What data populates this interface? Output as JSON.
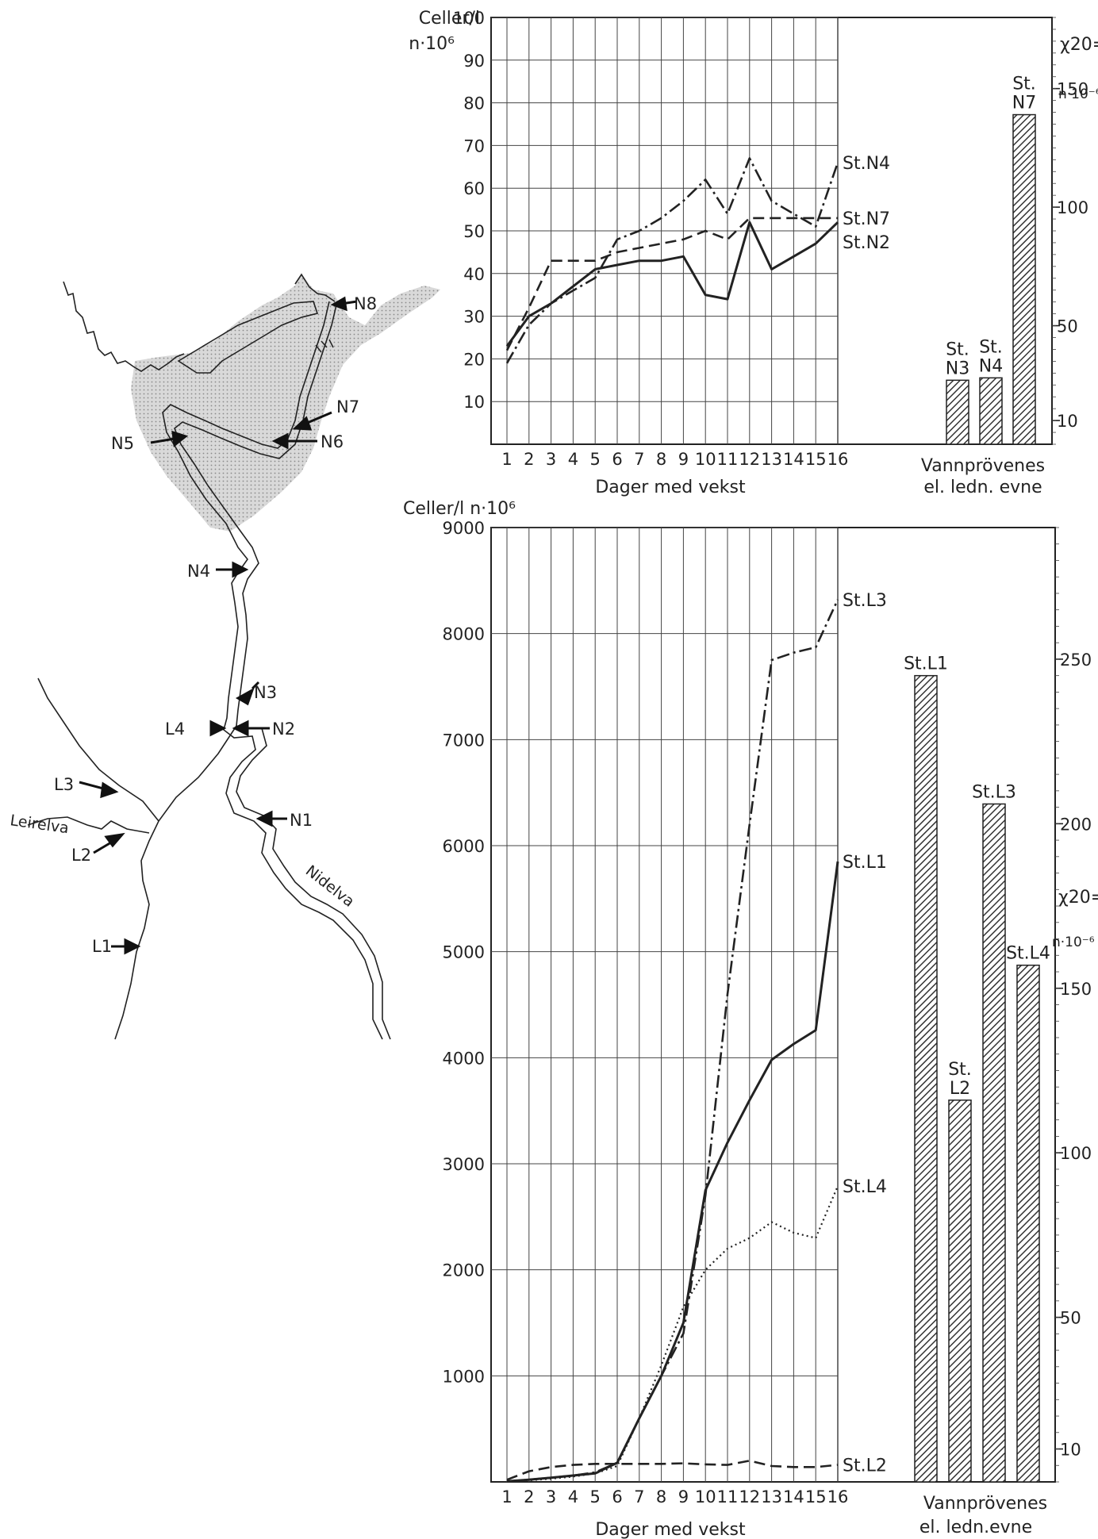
{
  "map": {
    "river_labels": [
      "Leirelva",
      "Nidelva"
    ],
    "stations": [
      "N8",
      "N7",
      "N6",
      "N5",
      "N4",
      "N3",
      "N2",
      "N1",
      "L4",
      "L3",
      "L2",
      "L1"
    ]
  },
  "chart_data": [
    {
      "type": "line",
      "title": "",
      "ylabel_lines": [
        "Celler/l",
        "n·10⁶"
      ],
      "xlabel": "Dager med vekst",
      "x": [
        1,
        2,
        3,
        4,
        5,
        6,
        7,
        8,
        9,
        10,
        11,
        12,
        13,
        14,
        15,
        16
      ],
      "ylim": [
        0,
        100
      ],
      "yticks": [
        10,
        20,
        30,
        40,
        50,
        60,
        70,
        80,
        90,
        100
      ],
      "grid": true,
      "series": [
        {
          "name": "St.N4",
          "style": "dashdot",
          "values": [
            19,
            28,
            33,
            36,
            39,
            48,
            50,
            53,
            57,
            62,
            54,
            67,
            57,
            54,
            51,
            66
          ]
        },
        {
          "name": "St.N7",
          "style": "dashed",
          "values": [
            22,
            32,
            43,
            43,
            43,
            45,
            46,
            47,
            48,
            50,
            48,
            53,
            53,
            53,
            53,
            53
          ]
        },
        {
          "name": "St.N2",
          "style": "solid",
          "values": [
            23,
            30,
            33,
            37,
            41,
            42,
            43,
            43,
            44,
            35,
            34,
            52,
            41,
            44,
            47,
            52
          ]
        }
      ]
    },
    {
      "type": "bar",
      "xlabel_lines": [
        "Vannprövenes",
        "el. ledn. evne"
      ],
      "right_axis_label_lines": [
        "χ20=",
        "n·10⁻⁶"
      ],
      "yticks": [
        10,
        50,
        100,
        150
      ],
      "ylim": [
        0,
        180
      ],
      "categories": [
        "St. N3",
        "St. N4",
        "St. N7"
      ],
      "values": [
        27,
        28,
        139
      ],
      "color": "#555555"
    },
    {
      "type": "line",
      "title": "",
      "ylabel": "Celler/l  n·10⁶",
      "xlabel": "Dager med vekst",
      "x": [
        1,
        2,
        3,
        4,
        5,
        6,
        7,
        8,
        9,
        10,
        11,
        12,
        13,
        14,
        15,
        16
      ],
      "ylim": [
        0,
        9000
      ],
      "yticks": [
        1000,
        2000,
        3000,
        4000,
        5000,
        6000,
        7000,
        8000,
        9000
      ],
      "grid": true,
      "series": [
        {
          "name": "St.L3",
          "style": "dashdot",
          "values": [
            5,
            20,
            40,
            60,
            90,
            180,
            600,
            1000,
            1400,
            2700,
            4600,
            6200,
            7750,
            7820,
            7870,
            8320
          ]
        },
        {
          "name": "St.L1",
          "style": "solid",
          "values": [
            5,
            20,
            40,
            60,
            80,
            180,
            600,
            1000,
            1500,
            2750,
            3200,
            3600,
            3980,
            4130,
            4260,
            5850
          ]
        },
        {
          "name": "St.L4",
          "style": "dotted",
          "values": [
            5,
            15,
            30,
            50,
            80,
            150,
            600,
            1100,
            1650,
            2000,
            2200,
            2300,
            2450,
            2350,
            2300,
            2790
          ]
        },
        {
          "name": "St.L2",
          "style": "dashed",
          "values": [
            20,
            100,
            140,
            160,
            170,
            170,
            170,
            170,
            175,
            165,
            160,
            200,
            150,
            140,
            140,
            160
          ]
        }
      ]
    },
    {
      "type": "bar",
      "xlabel_lines": [
        "Vannprövenes",
        "el. ledn.evne"
      ],
      "right_axis_label_lines": [
        "χ20=",
        "n·10⁻⁶"
      ],
      "yticks": [
        10,
        50,
        100,
        150,
        200,
        250
      ],
      "ylim": [
        0,
        290
      ],
      "categories": [
        "St.L1",
        "St. L2",
        "St.L3",
        "St.L4"
      ],
      "values": [
        245,
        116,
        206,
        157
      ],
      "color": "#555555"
    }
  ]
}
